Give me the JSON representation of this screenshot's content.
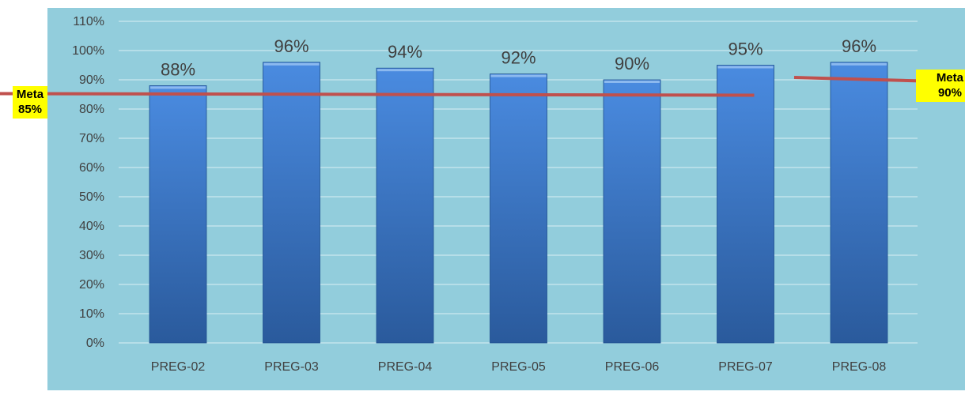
{
  "chart_data": {
    "type": "bar",
    "categories": [
      "PREG-02",
      "PREG-03",
      "PREG-04",
      "PREG-05",
      "PREG-06",
      "PREG-07",
      "PREG-08"
    ],
    "values": [
      88,
      96,
      94,
      92,
      90,
      95,
      96
    ],
    "value_labels": [
      "88%",
      "96%",
      "94%",
      "92%",
      "90%",
      "95%",
      "96%"
    ],
    "y_ticks": [
      "0%",
      "10%",
      "20%",
      "30%",
      "40%",
      "50%",
      "60%",
      "70%",
      "80%",
      "90%",
      "100%",
      "110%"
    ],
    "ylim": [
      0,
      110
    ],
    "title": "",
    "xlabel": "",
    "ylabel": "",
    "grid": true,
    "legend": "none",
    "targets": [
      {
        "label_line1": "Meta",
        "label_line2": "85%",
        "value": 85,
        "applies_to": [
          "PREG-02",
          "PREG-03",
          "PREG-04",
          "PREG-05",
          "PREG-06",
          "PREG-07"
        ]
      },
      {
        "label_line1": "Meta",
        "label_line2": "90%",
        "value": 90,
        "applies_to": [
          "PREG-08"
        ]
      }
    ],
    "colors": {
      "plot_background": "#92cddc",
      "bar_top": "#4a8be0",
      "bar_bottom": "#2a5a9c",
      "target_line": "#c0504d",
      "target_label_bg": "#ffff00",
      "axis_text": "#404040",
      "grid": "#dbeef4"
    }
  }
}
